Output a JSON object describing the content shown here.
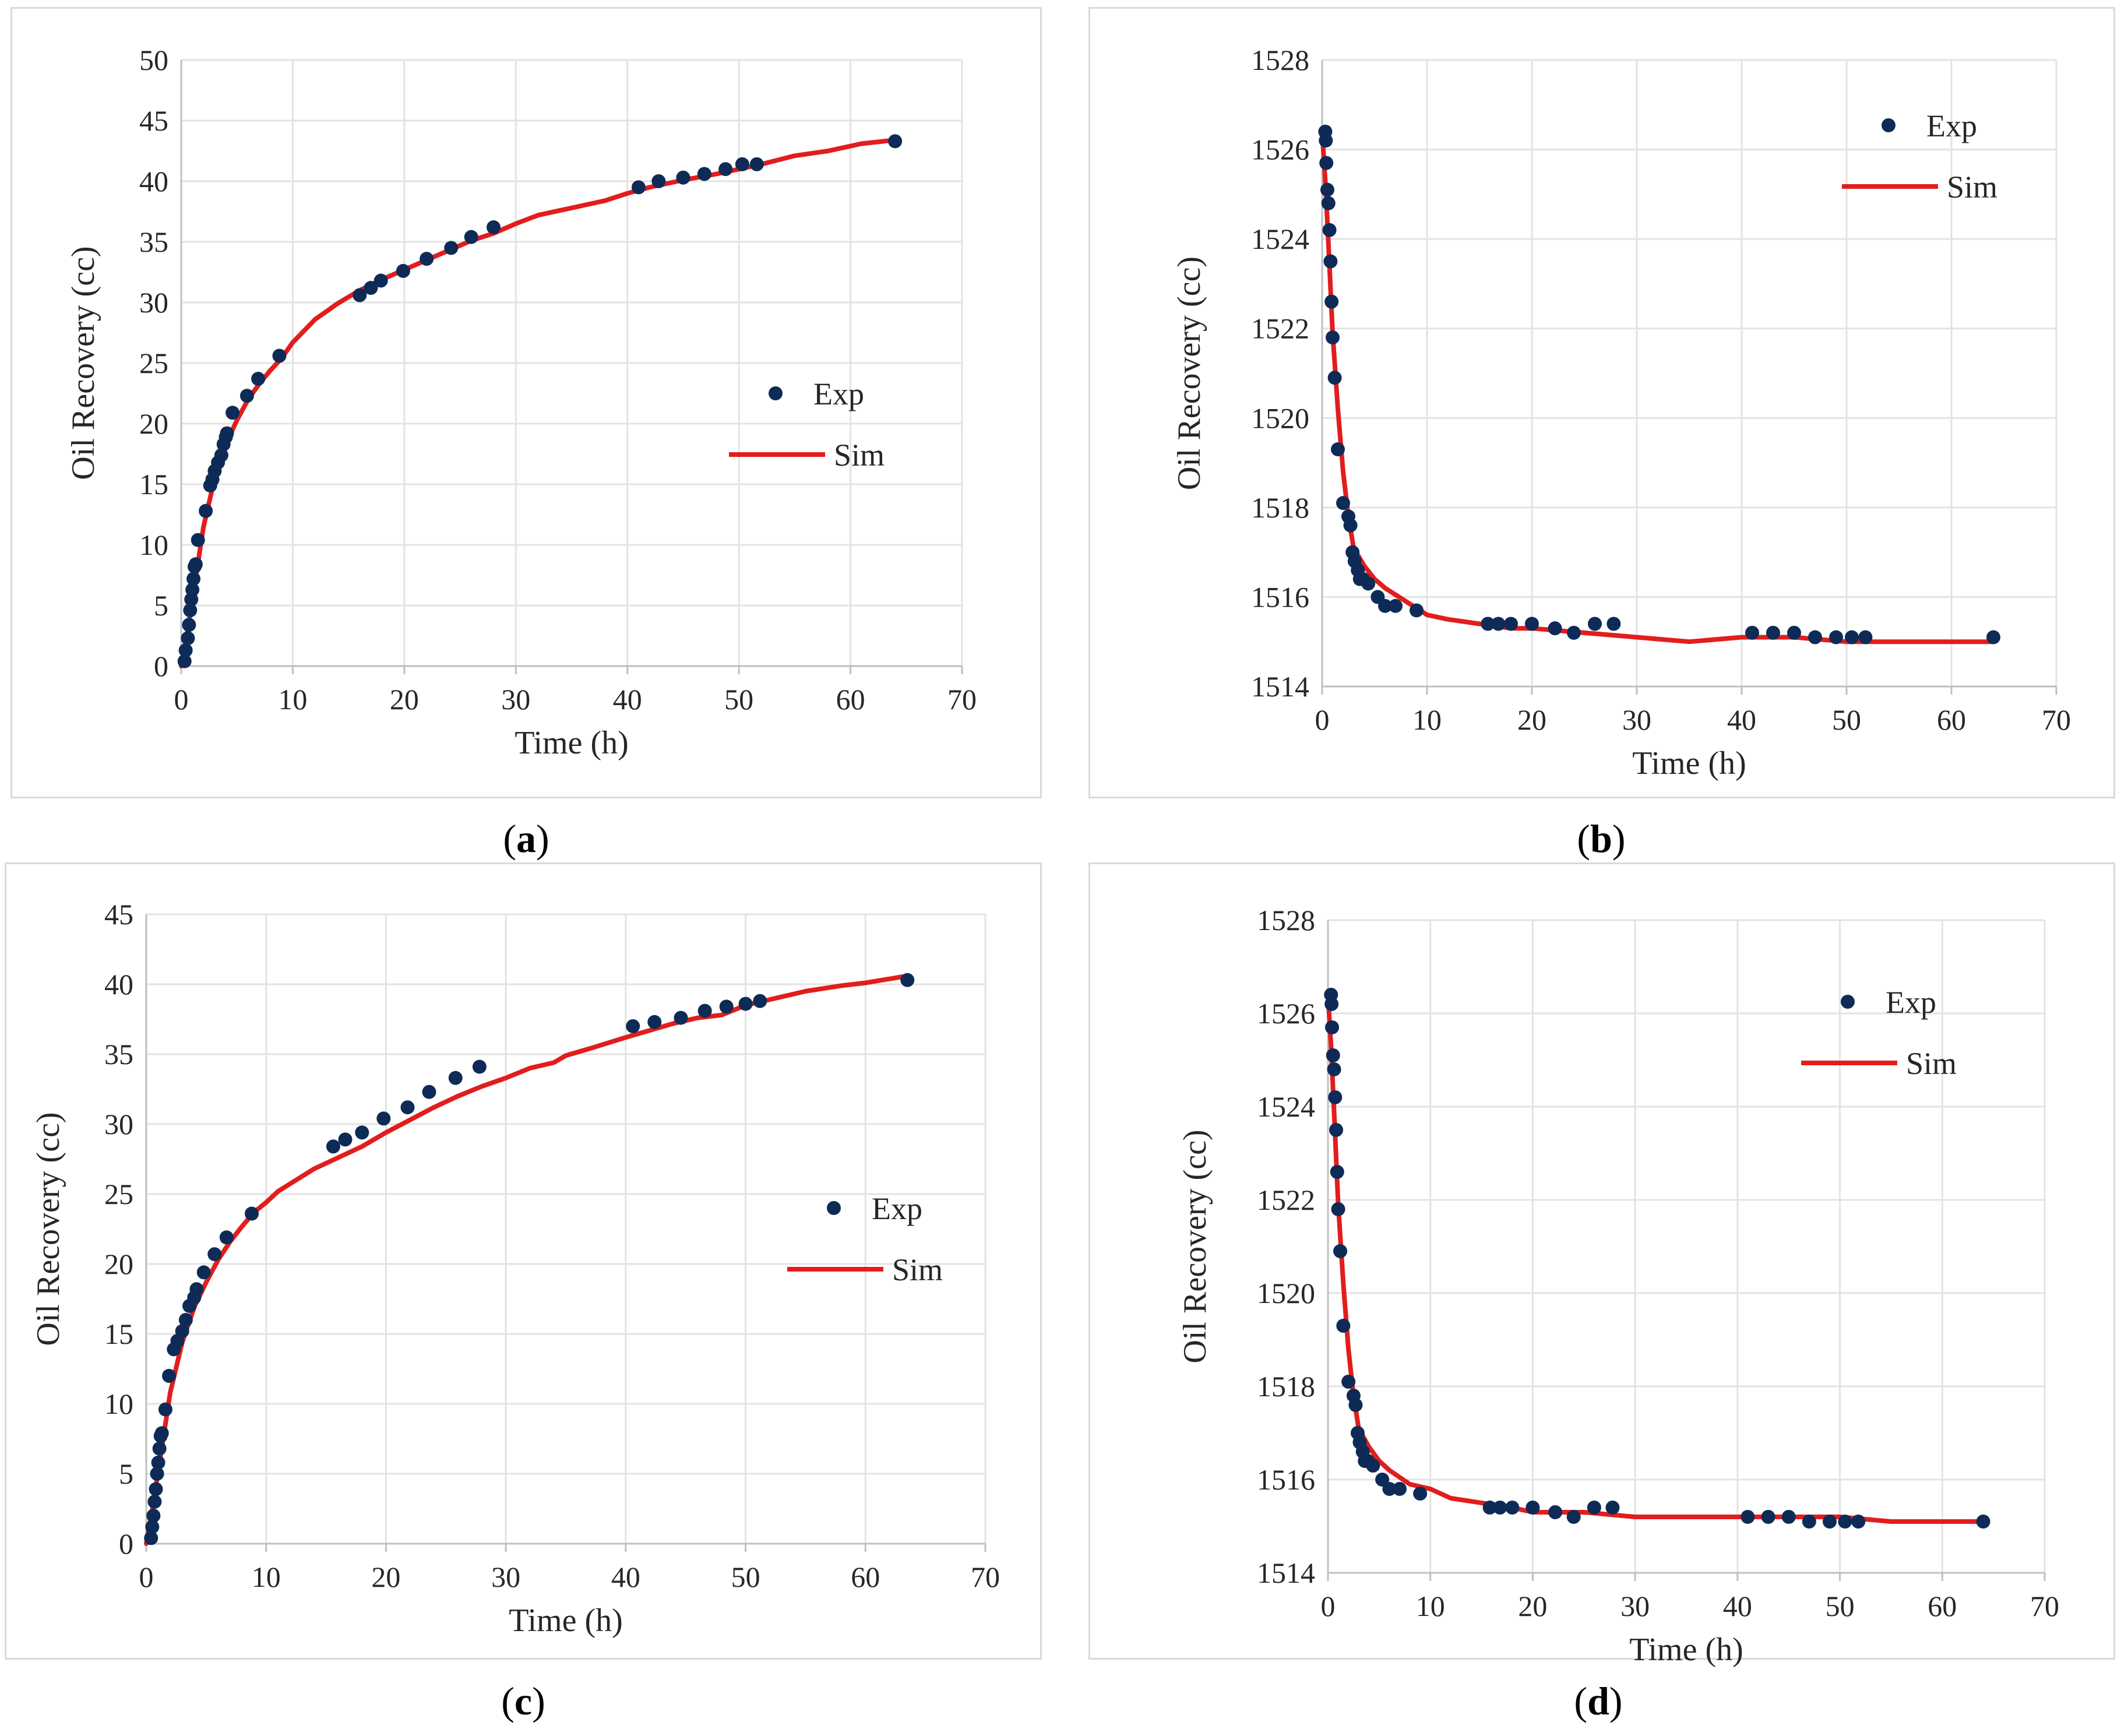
{
  "colors": {
    "exp_marker": "#0e2b57",
    "sim_line": "#e21d1d",
    "grid": "#e3e3e3",
    "axis": "#bfbfbf"
  },
  "chart_data": [
    {
      "id": "a",
      "type": "scatter+line",
      "caption": "a",
      "xlabel": "Time (h)",
      "ylabel": "Oil Recovery (cc)",
      "xlim": [
        0,
        70
      ],
      "ylim": [
        0,
        50
      ],
      "xticks": [
        0,
        10,
        20,
        30,
        40,
        50,
        60,
        70
      ],
      "yticks": [
        0,
        5,
        10,
        15,
        20,
        25,
        30,
        35,
        40,
        45,
        50
      ],
      "legend": {
        "placement": "middle-right",
        "exp_label": "Exp",
        "sim_label": "Sim"
      },
      "series": [
        {
          "name": "Exp",
          "kind": "markers",
          "x": [
            0.3,
            0.4,
            0.6,
            0.7,
            0.8,
            0.9,
            1.0,
            1.1,
            1.2,
            1.3,
            1.5,
            2.2,
            2.6,
            2.8,
            3.0,
            3.3,
            3.6,
            3.8,
            4.0,
            4.1,
            4.6,
            5.9,
            6.9,
            8.8,
            16.0,
            17.0,
            17.9,
            19.9,
            22.0,
            24.2,
            26.0,
            28.0,
            41.0,
            42.8,
            45.0,
            46.9,
            48.8,
            50.3,
            51.6,
            64.0
          ],
          "y": [
            0.4,
            1.3,
            2.3,
            3.4,
            4.6,
            5.5,
            6.3,
            7.2,
            8.2,
            8.4,
            10.4,
            12.8,
            14.9,
            15.4,
            16.1,
            16.8,
            17.4,
            18.3,
            18.9,
            19.2,
            20.9,
            22.3,
            23.7,
            25.6,
            30.6,
            31.2,
            31.8,
            32.6,
            33.6,
            34.5,
            35.4,
            36.2,
            39.5,
            40.0,
            40.3,
            40.6,
            41.0,
            41.4,
            41.4,
            43.3
          ]
        },
        {
          "name": "Sim",
          "kind": "line",
          "x": [
            0,
            0.5,
            1,
            1.5,
            2,
            3,
            4,
            5,
            6,
            7,
            8,
            9,
            10,
            12,
            14,
            16,
            18,
            20,
            22,
            24,
            26,
            28,
            30,
            32,
            35,
            38,
            40,
            42,
            45,
            48,
            50,
            52,
            55,
            58,
            61,
            64
          ],
          "y": [
            0,
            2.5,
            5.5,
            8.5,
            11.5,
            15.5,
            18.3,
            20.3,
            22,
            23.3,
            24.4,
            25.4,
            26.7,
            28.6,
            29.9,
            31,
            31.9,
            32.7,
            33.5,
            34.3,
            35.1,
            35.7,
            36.5,
            37.2,
            37.8,
            38.4,
            39.0,
            39.5,
            40.1,
            40.6,
            41.0,
            41.4,
            42.1,
            42.5,
            43.1,
            43.4
          ]
        }
      ]
    },
    {
      "id": "b",
      "type": "scatter+line",
      "caption": "b",
      "xlabel": "Time (h)",
      "ylabel": "Oil Recovery (cc)",
      "xlim": [
        0,
        70
      ],
      "ylim": [
        1514,
        1528
      ],
      "xticks": [
        0,
        10,
        20,
        30,
        40,
        50,
        60,
        70
      ],
      "yticks": [
        1514,
        1516,
        1518,
        1520,
        1522,
        1524,
        1526,
        1528
      ],
      "legend": {
        "placement": "top-right",
        "exp_label": "Exp",
        "sim_label": "Sim"
      },
      "series": [
        {
          "name": "Exp",
          "kind": "markers",
          "x": [
            0.3,
            0.35,
            0.4,
            0.5,
            0.6,
            0.7,
            0.8,
            0.9,
            1.0,
            1.2,
            1.5,
            2.0,
            2.5,
            2.7,
            2.9,
            3.1,
            3.4,
            3.6,
            3.9,
            4.4,
            5.3,
            6.0,
            7.0,
            9.0,
            15.8,
            16.8,
            18.0,
            20.0,
            22.2,
            24.0,
            26.0,
            27.8,
            41.0,
            43.0,
            45.0,
            47.0,
            49.0,
            50.5,
            51.8,
            64.0
          ],
          "y": [
            1526.4,
            1526.2,
            1525.7,
            1525.1,
            1524.8,
            1524.2,
            1523.5,
            1522.6,
            1521.8,
            1520.9,
            1519.3,
            1518.1,
            1517.8,
            1517.6,
            1517.0,
            1516.8,
            1516.6,
            1516.4,
            1516.4,
            1516.3,
            1516.0,
            1515.8,
            1515.8,
            1515.7,
            1515.4,
            1515.4,
            1515.4,
            1515.4,
            1515.3,
            1515.2,
            1515.4,
            1515.4,
            1515.2,
            1515.2,
            1515.2,
            1515.1,
            1515.1,
            1515.1,
            1515.1,
            1515.1
          ]
        },
        {
          "name": "Sim",
          "kind": "line",
          "x": [
            0,
            0.3,
            0.6,
            1.0,
            1.5,
            2.0,
            2.5,
            3,
            4,
            5,
            6,
            8,
            10,
            12,
            15,
            18,
            20,
            25,
            30,
            35,
            40,
            45,
            50,
            55,
            60,
            64
          ],
          "y": [
            1526.4,
            1525.3,
            1523.9,
            1521.9,
            1520.2,
            1518.8,
            1517.8,
            1517.1,
            1516.7,
            1516.4,
            1516.2,
            1515.9,
            1515.6,
            1515.5,
            1515.4,
            1515.3,
            1515.3,
            1515.2,
            1515.1,
            1515.0,
            1515.1,
            1515.1,
            1515.0,
            1515.0,
            1515.0,
            1515.0
          ]
        }
      ]
    },
    {
      "id": "c",
      "type": "scatter+line",
      "caption": "c",
      "xlabel": "Time (h)",
      "ylabel": "Oil Recovery (cc)",
      "xlim": [
        0,
        70
      ],
      "ylim": [
        0,
        45
      ],
      "xticks": [
        0,
        10,
        20,
        30,
        40,
        50,
        60,
        70
      ],
      "yticks": [
        0,
        5,
        10,
        15,
        20,
        25,
        30,
        35,
        40,
        45
      ],
      "legend": {
        "placement": "middle-right",
        "exp_label": "Exp",
        "sim_label": "Sim"
      },
      "series": [
        {
          "name": "Exp",
          "kind": "markers",
          "x": [
            0.4,
            0.5,
            0.6,
            0.7,
            0.8,
            0.9,
            1.0,
            1.1,
            1.2,
            1.3,
            1.6,
            1.9,
            2.3,
            2.6,
            3.0,
            3.3,
            3.6,
            4.0,
            4.2,
            4.8,
            5.7,
            6.7,
            8.8,
            15.6,
            16.6,
            18.0,
            19.8,
            21.8,
            23.6,
            25.8,
            27.8,
            40.6,
            42.4,
            44.6,
            46.6,
            48.4,
            50.0,
            51.2,
            63.5
          ],
          "y": [
            0.4,
            1.2,
            2.0,
            3.0,
            3.9,
            5.0,
            5.8,
            6.8,
            7.7,
            7.9,
            9.6,
            12.0,
            13.9,
            14.5,
            15.2,
            16.0,
            17.0,
            17.6,
            18.2,
            19.4,
            20.7,
            21.9,
            23.6,
            28.4,
            28.9,
            29.4,
            30.4,
            31.2,
            32.3,
            33.3,
            34.1,
            37.0,
            37.3,
            37.6,
            38.1,
            38.4,
            38.6,
            38.8,
            40.3
          ]
        },
        {
          "name": "Sim",
          "kind": "line",
          "x": [
            0,
            0.5,
            1,
            1.5,
            2,
            3,
            4,
            5,
            6,
            7,
            8,
            9,
            10,
            11,
            12.5,
            14,
            16,
            18,
            20,
            22,
            24,
            26,
            28,
            30,
            32,
            34,
            35,
            37,
            40,
            42,
            44,
            46,
            48,
            50,
            52,
            55,
            58,
            60,
            63.5
          ],
          "y": [
            0,
            2.4,
            5.2,
            8.0,
            10.8,
            14.4,
            16.9,
            18.7,
            20.3,
            21.6,
            22.7,
            23.7,
            24.4,
            25.2,
            26.0,
            26.8,
            27.6,
            28.4,
            29.4,
            30.3,
            31.2,
            32.0,
            32.7,
            33.3,
            34.0,
            34.4,
            34.9,
            35.4,
            36.2,
            36.7,
            37.2,
            37.6,
            37.8,
            38.5,
            38.9,
            39.5,
            39.9,
            40.1,
            40.6
          ]
        }
      ]
    },
    {
      "id": "d",
      "type": "scatter+line",
      "caption": "d",
      "xlabel": "Time (h)",
      "ylabel": "Oil Recovery (cc)",
      "xlim": [
        0,
        70
      ],
      "ylim": [
        1514,
        1528
      ],
      "xticks": [
        0,
        10,
        20,
        30,
        40,
        50,
        60,
        70
      ],
      "yticks": [
        1514,
        1516,
        1518,
        1520,
        1522,
        1524,
        1526,
        1528
      ],
      "legend": {
        "placement": "top-right",
        "exp_label": "Exp",
        "sim_label": "Sim"
      },
      "series": [
        {
          "name": "Exp",
          "kind": "markers",
          "x": [
            0.3,
            0.35,
            0.4,
            0.5,
            0.6,
            0.7,
            0.8,
            0.9,
            1.0,
            1.2,
            1.5,
            2.0,
            2.5,
            2.7,
            2.9,
            3.1,
            3.4,
            3.6,
            3.9,
            4.4,
            5.3,
            6.0,
            7.0,
            9.0,
            15.8,
            16.8,
            18.0,
            20.0,
            22.2,
            24.0,
            26.0,
            27.8,
            41.0,
            43.0,
            45.0,
            47.0,
            49.0,
            50.5,
            51.8,
            64.0
          ],
          "y": [
            1526.4,
            1526.2,
            1525.7,
            1525.1,
            1524.8,
            1524.2,
            1523.5,
            1522.6,
            1521.8,
            1520.9,
            1519.3,
            1518.1,
            1517.8,
            1517.6,
            1517.0,
            1516.8,
            1516.6,
            1516.4,
            1516.4,
            1516.3,
            1516.0,
            1515.8,
            1515.8,
            1515.7,
            1515.4,
            1515.4,
            1515.4,
            1515.4,
            1515.3,
            1515.2,
            1515.4,
            1515.4,
            1515.2,
            1515.2,
            1515.2,
            1515.1,
            1515.1,
            1515.1,
            1515.1,
            1515.1
          ]
        },
        {
          "name": "Sim",
          "kind": "line",
          "x": [
            0,
            0.3,
            0.6,
            1.0,
            1.5,
            2.0,
            2.5,
            3,
            4,
            5,
            6,
            8,
            10,
            12,
            15,
            18,
            20,
            25,
            30,
            35,
            40,
            45,
            50,
            55,
            60,
            64
          ],
          "y": [
            1526.4,
            1525.3,
            1523.9,
            1521.9,
            1520.2,
            1518.8,
            1517.8,
            1517.1,
            1516.7,
            1516.4,
            1516.2,
            1515.9,
            1515.8,
            1515.6,
            1515.5,
            1515.4,
            1515.3,
            1515.3,
            1515.2,
            1515.2,
            1515.2,
            1515.2,
            1515.2,
            1515.1,
            1515.1,
            1515.1
          ]
        }
      ]
    }
  ]
}
